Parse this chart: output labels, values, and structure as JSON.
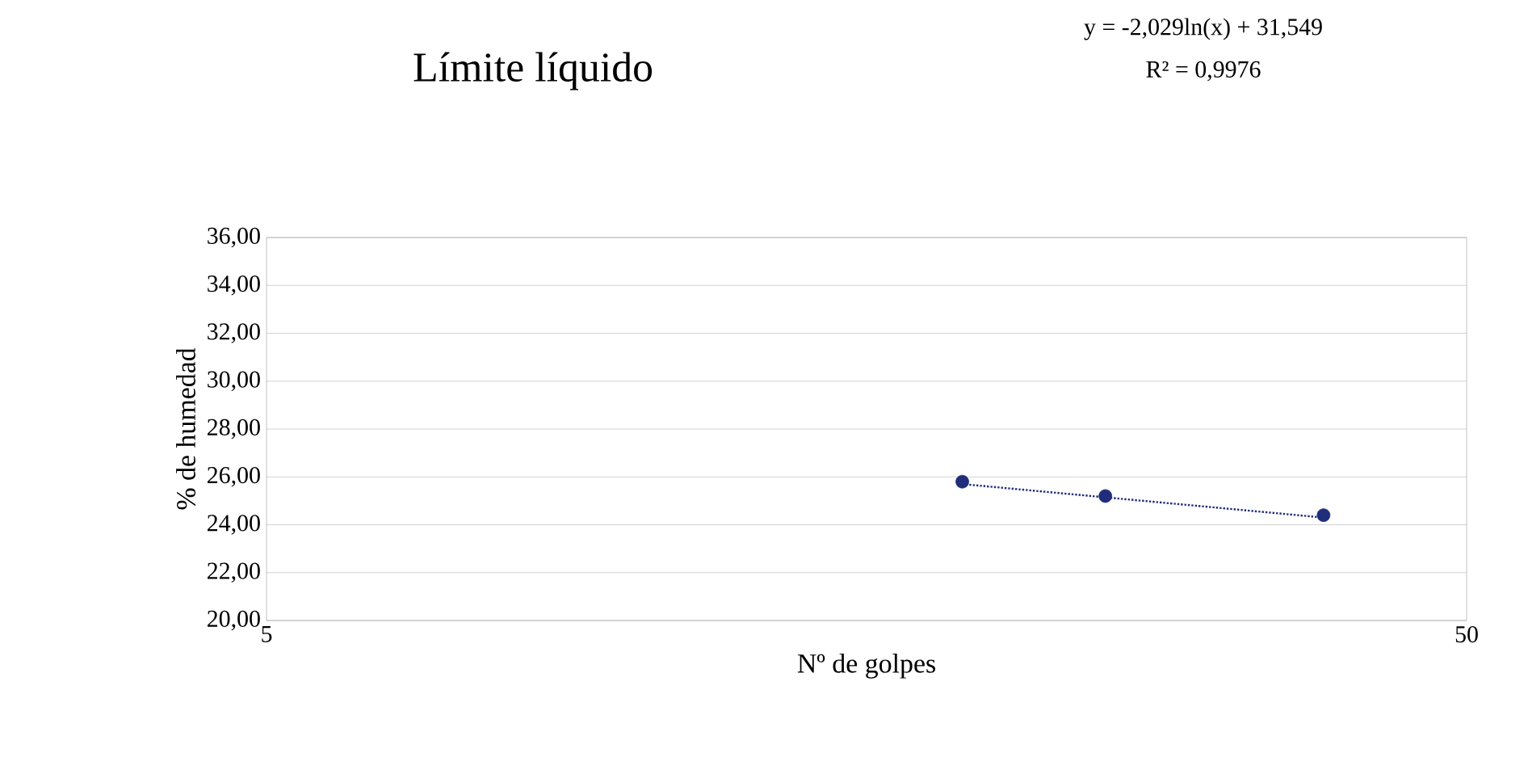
{
  "chart_data": {
    "type": "scatter",
    "title": "Límite líquido",
    "xlabel": "Nº de golpes",
    "ylabel": "% de humedad",
    "annotations": [
      "y = -2,029ln(x) + 31,549",
      "R² = 0,9976"
    ],
    "log": "x",
    "xlim": [
      5,
      50
    ],
    "xticks": [
      5,
      50
    ],
    "ylim": [
      20,
      36
    ],
    "yticks": [
      {
        "value": 20,
        "label": "20,00"
      },
      {
        "value": 22,
        "label": "22,00"
      },
      {
        "value": 24,
        "label": "24,00"
      },
      {
        "value": 26,
        "label": "26,00"
      },
      {
        "value": 28,
        "label": "28,00"
      },
      {
        "value": 30,
        "label": "30,00"
      },
      {
        "value": 32,
        "label": "32,00"
      },
      {
        "value": 34,
        "label": "34,00"
      },
      {
        "value": 36,
        "label": "36,00"
      }
    ],
    "grid": "y",
    "series": [
      {
        "x": [
          19,
          25,
          38
        ],
        "values": [
          25.8,
          25.2,
          24.4
        ],
        "color": "#1f2d7a",
        "marker": "circle"
      },
      {
        "type": "line",
        "x": [
          19,
          38
        ],
        "values": [
          25.7,
          24.3
        ],
        "color": "#1f2d7a",
        "line_style": "dotted",
        "marker": "none"
      }
    ]
  }
}
